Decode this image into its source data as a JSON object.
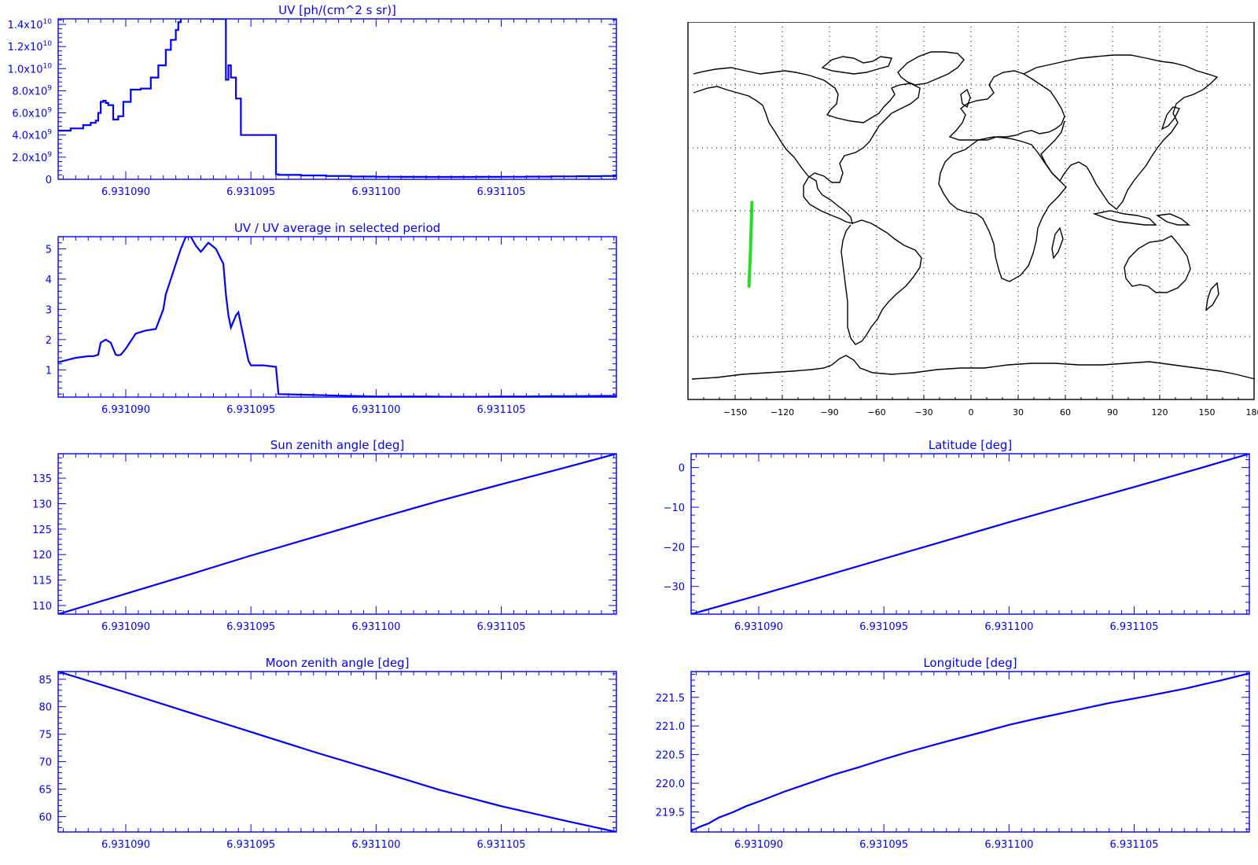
{
  "chart_data": [
    {
      "id": "uv",
      "type": "line",
      "step": true,
      "title": "UV [ph/(cm^2 s sr)]",
      "xlabel": "",
      "ylabel": "",
      "xlim": [
        6.9310873,
        6.9311096
      ],
      "ylim": [
        0,
        14500000000
      ],
      "x_ticks": [
        6.93109,
        6.931095,
        6.9311,
        6.931105
      ],
      "x_tick_labels": [
        "6.931090",
        "6.931095",
        "6.931100",
        "6.931105"
      ],
      "y_ticks": [
        0,
        2000000000,
        4000000000,
        6000000000,
        8000000000,
        10000000000,
        12000000000,
        14000000000
      ],
      "y_tick_labels": [
        {
          "mant": "0",
          "exp": ""
        },
        {
          "mant": "2.0x10",
          "exp": "9"
        },
        {
          "mant": "4.0x10",
          "exp": "9"
        },
        {
          "mant": "6.0x10",
          "exp": "9"
        },
        {
          "mant": "8.0x10",
          "exp": "9"
        },
        {
          "mant": "1.0x10",
          "exp": "10"
        },
        {
          "mant": "1.2x10",
          "exp": "10"
        },
        {
          "mant": "1.4x10",
          "exp": "10"
        }
      ],
      "series": [
        {
          "color": "#0000ff",
          "x": [
            6.9310873,
            6.9310878,
            6.9310883,
            6.9310886,
            6.9310888,
            6.9310889,
            6.931089,
            6.9310891,
            6.9310892,
            6.9310893,
            6.9310895,
            6.9310897,
            6.9310899,
            6.9310902,
            6.9310906,
            6.931091,
            6.9310913,
            6.9310916,
            6.9310918,
            6.931092,
            6.9310921,
            6.9310922,
            6.9310925,
            6.9310928,
            6.9310934,
            6.9310938,
            6.931094,
            6.9310941,
            6.9310942,
            6.9310944,
            6.9310946,
            6.9310948,
            6.931095,
            6.9310955,
            6.931096,
            6.9310961,
            6.931097,
            6.931098,
            6.931099,
            6.9311,
            6.931101,
            6.931102,
            6.931103,
            6.931104,
            6.931105,
            6.931106,
            6.931107,
            6.931108,
            6.931109,
            6.9311096
          ],
          "y": [
            4400000000,
            4600000000,
            4900000000,
            5100000000,
            5300000000,
            6000000000,
            7000000000,
            7100000000,
            6900000000,
            6700000000,
            5400000000,
            5700000000,
            7000000000,
            8100000000,
            8200000000,
            9200000000,
            10300000000,
            11700000000,
            12600000000,
            13500000000,
            14200000000,
            14600000000,
            14600000000,
            14600000000,
            14500000000,
            14500000000,
            9000000000,
            10300000000,
            9200000000,
            7300000000,
            4000000000,
            4000000000,
            4000000000,
            4000000000,
            450000000,
            400000000,
            350000000,
            300000000,
            250000000,
            230000000,
            220000000,
            210000000,
            210000000,
            220000000,
            230000000,
            240000000,
            260000000,
            280000000,
            300000000,
            300000000
          ]
        }
      ]
    },
    {
      "id": "uv-ratio",
      "type": "line",
      "title": "UV / UV average in selected period",
      "xlabel": "",
      "ylabel": "",
      "xlim": [
        6.9310873,
        6.9311096
      ],
      "ylim": [
        0.1,
        5.4
      ],
      "x_ticks": [
        6.93109,
        6.931095,
        6.9311,
        6.931105
      ],
      "x_tick_labels": [
        "6.931090",
        "6.931095",
        "6.931100",
        "6.931105"
      ],
      "y_ticks": [
        1,
        2,
        3,
        4,
        5
      ],
      "y_tick_labels": [
        "1",
        "2",
        "3",
        "4",
        "5"
      ],
      "series": [
        {
          "color": "#0000ff",
          "x": [
            6.9310873,
            6.931088,
            6.9310885,
            6.9310887,
            6.9310889,
            6.931089,
            6.9310892,
            6.9310893,
            6.9310894,
            6.9310895,
            6.9310896,
            6.9310897,
            6.9310898,
            6.93109,
            6.9310904,
            6.9310908,
            6.9310912,
            6.9310915,
            6.9310916,
            6.9310918,
            6.931092,
            6.9310922,
            6.9310924,
            6.9310926,
            6.9310928,
            6.931093,
            6.9310931,
            6.9310932,
            6.9310933,
            6.9310936,
            6.9310939,
            6.931094,
            6.9310941,
            6.9310942,
            6.9310944,
            6.9310945,
            6.9310949,
            6.931095,
            6.9310955,
            6.931096,
            6.9310961,
            6.931097,
            6.931098,
            6.931099,
            6.9311,
            6.931101,
            6.931102,
            6.931103,
            6.931104,
            6.931105,
            6.931106,
            6.931107,
            6.931108,
            6.931109,
            6.9311096
          ],
          "y": [
            1.25,
            1.4,
            1.45,
            1.45,
            1.5,
            1.9,
            2.0,
            1.95,
            1.9,
            1.7,
            1.5,
            1.48,
            1.5,
            1.7,
            2.2,
            2.3,
            2.35,
            3.0,
            3.5,
            4.0,
            4.5,
            5.0,
            5.4,
            5.4,
            5.1,
            4.9,
            5.0,
            5.1,
            5.2,
            5.0,
            4.5,
            3.5,
            2.8,
            2.4,
            2.8,
            2.9,
            1.3,
            1.15,
            1.15,
            1.1,
            0.2,
            0.18,
            0.16,
            0.14,
            0.12,
            0.12,
            0.12,
            0.11,
            0.11,
            0.12,
            0.12,
            0.13,
            0.13,
            0.14,
            0.14
          ]
        }
      ]
    },
    {
      "id": "sun-zenith",
      "type": "line",
      "title": "Sun zenith angle [deg]",
      "xlabel": "",
      "ylabel": "",
      "xlim": [
        6.9310873,
        6.9311096
      ],
      "ylim": [
        108.3,
        139.8
      ],
      "x_ticks": [
        6.93109,
        6.931095,
        6.9311,
        6.931105
      ],
      "x_tick_labels": [
        "6.931090",
        "6.931095",
        "6.931100",
        "6.931105"
      ],
      "y_ticks": [
        110,
        115,
        120,
        125,
        130,
        135
      ],
      "y_tick_labels": [
        "110",
        "115",
        "120",
        "125",
        "130",
        "135"
      ],
      "series": [
        {
          "color": "#0000ff",
          "x": [
            6.9310873,
            6.93109,
            6.9310925,
            6.931095,
            6.9310975,
            6.9311,
            6.9311025,
            6.931105,
            6.9311075,
            6.9311096
          ],
          "y": [
            108.3,
            112.3,
            116.0,
            119.8,
            123.4,
            127.0,
            130.5,
            133.8,
            137.0,
            139.8
          ]
        }
      ]
    },
    {
      "id": "moon-zenith",
      "type": "line",
      "title": "Moon zenith angle [deg]",
      "xlabel": "",
      "ylabel": "",
      "xlim": [
        6.9310873,
        6.9311096
      ],
      "ylim": [
        57.2,
        86.4
      ],
      "x_ticks": [
        6.93109,
        6.931095,
        6.9311,
        6.931105
      ],
      "x_tick_labels": [
        "6.931090",
        "6.931095",
        "6.931100",
        "6.931105"
      ],
      "y_ticks": [
        60,
        65,
        70,
        75,
        80,
        85
      ],
      "y_tick_labels": [
        "60",
        "65",
        "70",
        "75",
        "80",
        "85"
      ],
      "series": [
        {
          "color": "#0000ff",
          "x": [
            6.9310873,
            6.93109,
            6.9310925,
            6.931095,
            6.9310975,
            6.9311,
            6.9311025,
            6.931105,
            6.9311075,
            6.9311096
          ],
          "y": [
            86.4,
            82.6,
            79.0,
            75.4,
            71.8,
            68.4,
            64.9,
            61.9,
            59.3,
            57.2
          ]
        }
      ]
    },
    {
      "id": "latitude",
      "type": "line",
      "title": "Latitude [deg]",
      "xlabel": "",
      "ylabel": "",
      "xlim": [
        6.9310873,
        6.9311096
      ],
      "ylim": [
        -37.0,
        3.5
      ],
      "x_ticks": [
        6.93109,
        6.931095,
        6.9311,
        6.931105
      ],
      "x_tick_labels": [
        "6.931090",
        "6.931095",
        "6.931100",
        "6.931105"
      ],
      "y_ticks": [
        -30,
        -20,
        -10,
        0
      ],
      "y_tick_labels": [
        "−30",
        "−20",
        "−10",
        "0"
      ],
      "series": [
        {
          "color": "#0000ff",
          "x": [
            6.9310873,
            6.93109,
            6.9310925,
            6.931095,
            6.9310975,
            6.9311,
            6.9311025,
            6.931105,
            6.9311075,
            6.9311096
          ],
          "y": [
            -37.0,
            -32.2,
            -27.6,
            -23.0,
            -18.4,
            -13.8,
            -9.3,
            -4.9,
            -0.4,
            3.5
          ]
        }
      ]
    },
    {
      "id": "longitude",
      "type": "line",
      "title": "Longitude [deg]",
      "xlabel": "",
      "ylabel": "",
      "xlim": [
        6.9310873,
        6.9311096
      ],
      "ylim": [
        219.15,
        221.95
      ],
      "x_ticks": [
        6.93109,
        6.931095,
        6.9311,
        6.931105
      ],
      "x_tick_labels": [
        "6.931090",
        "6.931095",
        "6.931100",
        "6.931105"
      ],
      "y_ticks": [
        219.5,
        220.0,
        220.5,
        221.0,
        221.5
      ],
      "y_tick_labels": [
        "219.5",
        "220.0",
        "220.5",
        "221.0",
        "221.5"
      ],
      "series": [
        {
          "color": "#0000ff",
          "x": [
            6.9310873,
            6.9310877,
            6.931088,
            6.9310884,
            6.931089,
            6.9310895,
            6.93109,
            6.931091,
            6.931092,
            6.931093,
            6.931094,
            6.931095,
            6.931096,
            6.9310975,
            6.931099,
            6.9311,
            6.931101,
            6.9311025,
            6.931104,
            6.9311055,
            6.931107,
            6.9311085,
            6.9311096
          ],
          "y": [
            219.17,
            219.25,
            219.3,
            219.4,
            219.5,
            219.6,
            219.68,
            219.85,
            220.0,
            220.15,
            220.28,
            220.42,
            220.55,
            220.73,
            220.9,
            221.02,
            221.12,
            221.26,
            221.4,
            221.52,
            221.65,
            221.8,
            221.92
          ]
        }
      ]
    }
  ],
  "map": {
    "lon_range": [
      -180,
      180
    ],
    "lat_range": [
      -90,
      90
    ],
    "lon_ticks": [
      -150,
      -120,
      -90,
      -60,
      -30,
      0,
      30,
      60,
      90,
      120,
      150,
      180
    ],
    "lon_tick_labels": [
      "−150",
      "−120",
      "−90",
      "−60",
      "−30",
      "0",
      "30",
      "60",
      "90",
      "120",
      "150",
      "180"
    ],
    "grid_lat": [
      60,
      30,
      0,
      -30,
      -60
    ],
    "coast_color": "#000000",
    "track_color": "#22dd22",
    "track": {
      "lon": [
        -141.2,
        -140.3,
        -139.3
      ],
      "lat": [
        -36.0,
        -20.0,
        4.0
      ]
    }
  }
}
